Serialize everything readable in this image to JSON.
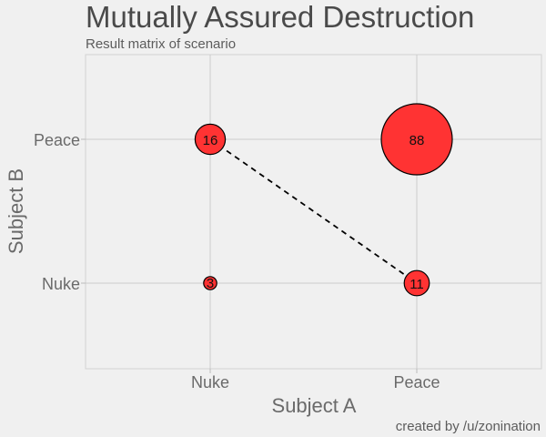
{
  "chart_data": {
    "type": "scatter",
    "title": "Mutually Assured Destruction",
    "subtitle": "Result matrix of scenario",
    "xlabel": "Subject A",
    "ylabel": "Subject B",
    "caption": "created by /u/zonination",
    "x_categories": [
      "Nuke",
      "Peace"
    ],
    "y_categories": [
      "Nuke",
      "Peace"
    ],
    "points": [
      {
        "x": "Nuke",
        "y": "Nuke",
        "value": 3,
        "label": "3"
      },
      {
        "x": "Nuke",
        "y": "Peace",
        "value": 16,
        "label": "16"
      },
      {
        "x": "Peace",
        "y": "Peace",
        "value": 88,
        "label": "88"
      },
      {
        "x": "Peace",
        "y": "Nuke",
        "value": 11,
        "label": "11"
      }
    ],
    "dashed_line": {
      "from": {
        "x": "Nuke",
        "y": "Peace"
      },
      "to": {
        "x": "Peace",
        "y": "Nuke"
      }
    },
    "grid": true,
    "legend": "none",
    "colors": {
      "bubble_fill": "#ff3333",
      "bubble_stroke": "#000000",
      "background": "#f0f0f0",
      "grid": "#cccccc"
    }
  }
}
